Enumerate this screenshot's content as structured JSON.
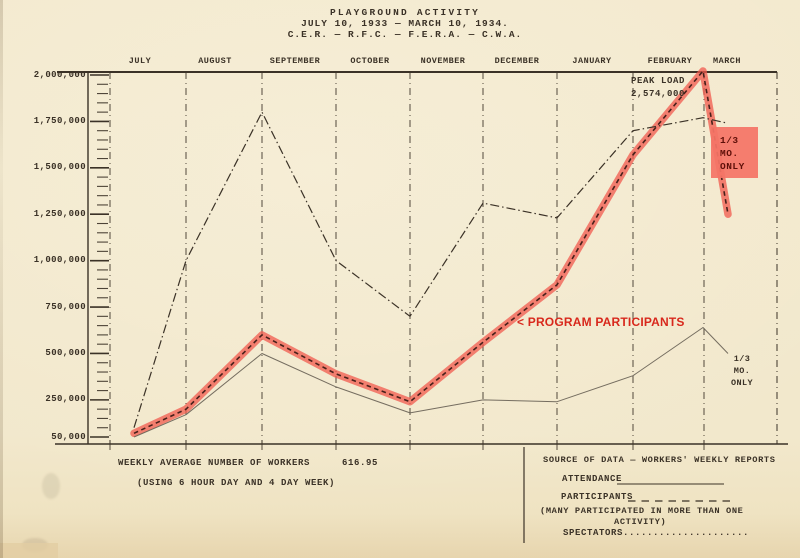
{
  "title": {
    "line1": "PLAYGROUND ACTIVITY",
    "line2": "JULY 10, 1933 — MARCH 10, 1934.",
    "line3": "C.E.R. — R.F.C. — F.E.R.A. — C.W.A."
  },
  "chart_data": {
    "type": "line",
    "title": "PLAYGROUND ACTIVITY",
    "subtitle": "JULY 10, 1933 — MARCH 10, 1934.",
    "agencies": "C.E.R. — R.F.C. — F.E.R.A. — C.W.A.",
    "x_months": [
      "JULY",
      "AUGUST",
      "SEPTEMBER",
      "OCTOBER",
      "NOVEMBER",
      "DECEMBER",
      "JANUARY",
      "FEBRUARY",
      "MARCH"
    ],
    "y_tick_labels": [
      "2,000,000",
      "1,750,000",
      "1,500,000",
      "1,250,000",
      "1,000,000",
      "750,000",
      "500,000",
      "250,000",
      "50,000"
    ],
    "y_tick_values": [
      2000000,
      1750000,
      1500000,
      1250000,
      1000000,
      750000,
      500000,
      250000,
      50000
    ],
    "ylim": [
      50000,
      2000000
    ],
    "grid": "monthly vertical dash-dot rules",
    "legend_position": "bottom-right panel",
    "x": [
      "JUL 10",
      "AUG 1",
      "SEP 1",
      "OCT 1",
      "NOV 1",
      "DEC 1",
      "JAN 1",
      "FEB 1",
      "MAR 1",
      "MAR 10"
    ],
    "series": [
      {
        "name": "ATTENDANCE",
        "style": "dashdot",
        "values": [
          100000,
          1000000,
          1800000,
          1000000,
          700000,
          1310000,
          1230000,
          1700000,
          1770000,
          1740000
        ]
      },
      {
        "name": "PARTICIPANTS",
        "style": "dashed",
        "highlighted": true,
        "values": [
          70000,
          200000,
          600000,
          390000,
          240000,
          560000,
          870000,
          1570000,
          2574000,
          1250000
        ]
      },
      {
        "name": "SPECTATORS",
        "style": "dotted",
        "values": [
          50000,
          170000,
          500000,
          320000,
          180000,
          250000,
          240000,
          380000,
          640000,
          500000
        ]
      }
    ],
    "annotations": {
      "peak_load_label": "PEAK LOAD",
      "peak_load_value": "2,574,000",
      "participants_callout": "< PROGRAM PARTICIPANTS",
      "one_third_red": "1/3 MO. ONLY",
      "one_third_black": "1/3 MO. ONLY"
    }
  },
  "footer": {
    "workers_label": "WEEKLY AVERAGE NUMBER OF WORKERS",
    "workers_value": "616.95",
    "workers_note": "(USING 6 HOUR DAY AND 4 DAY WEEK)",
    "source": "SOURCE OF DATA — WORKERS' WEEKLY REPORTS",
    "legend": {
      "attendance_label": "ATTENDANCE",
      "participants_label": "PARTICIPANTS",
      "participants_note_1": "(MANY PARTICIPATED IN MORE THAN ONE",
      "participants_note_2": "ACTIVITY)",
      "spectators_label": "SPECTATORS....................."
    }
  },
  "colors": {
    "paper": "#f2e8cc",
    "ink": "#3b3227",
    "faint_ink": "#6e665a",
    "annotation_red": "#d8281c",
    "highlight_band": "rgba(241,90,78,0.75)",
    "highlight_box": "#f47466"
  }
}
